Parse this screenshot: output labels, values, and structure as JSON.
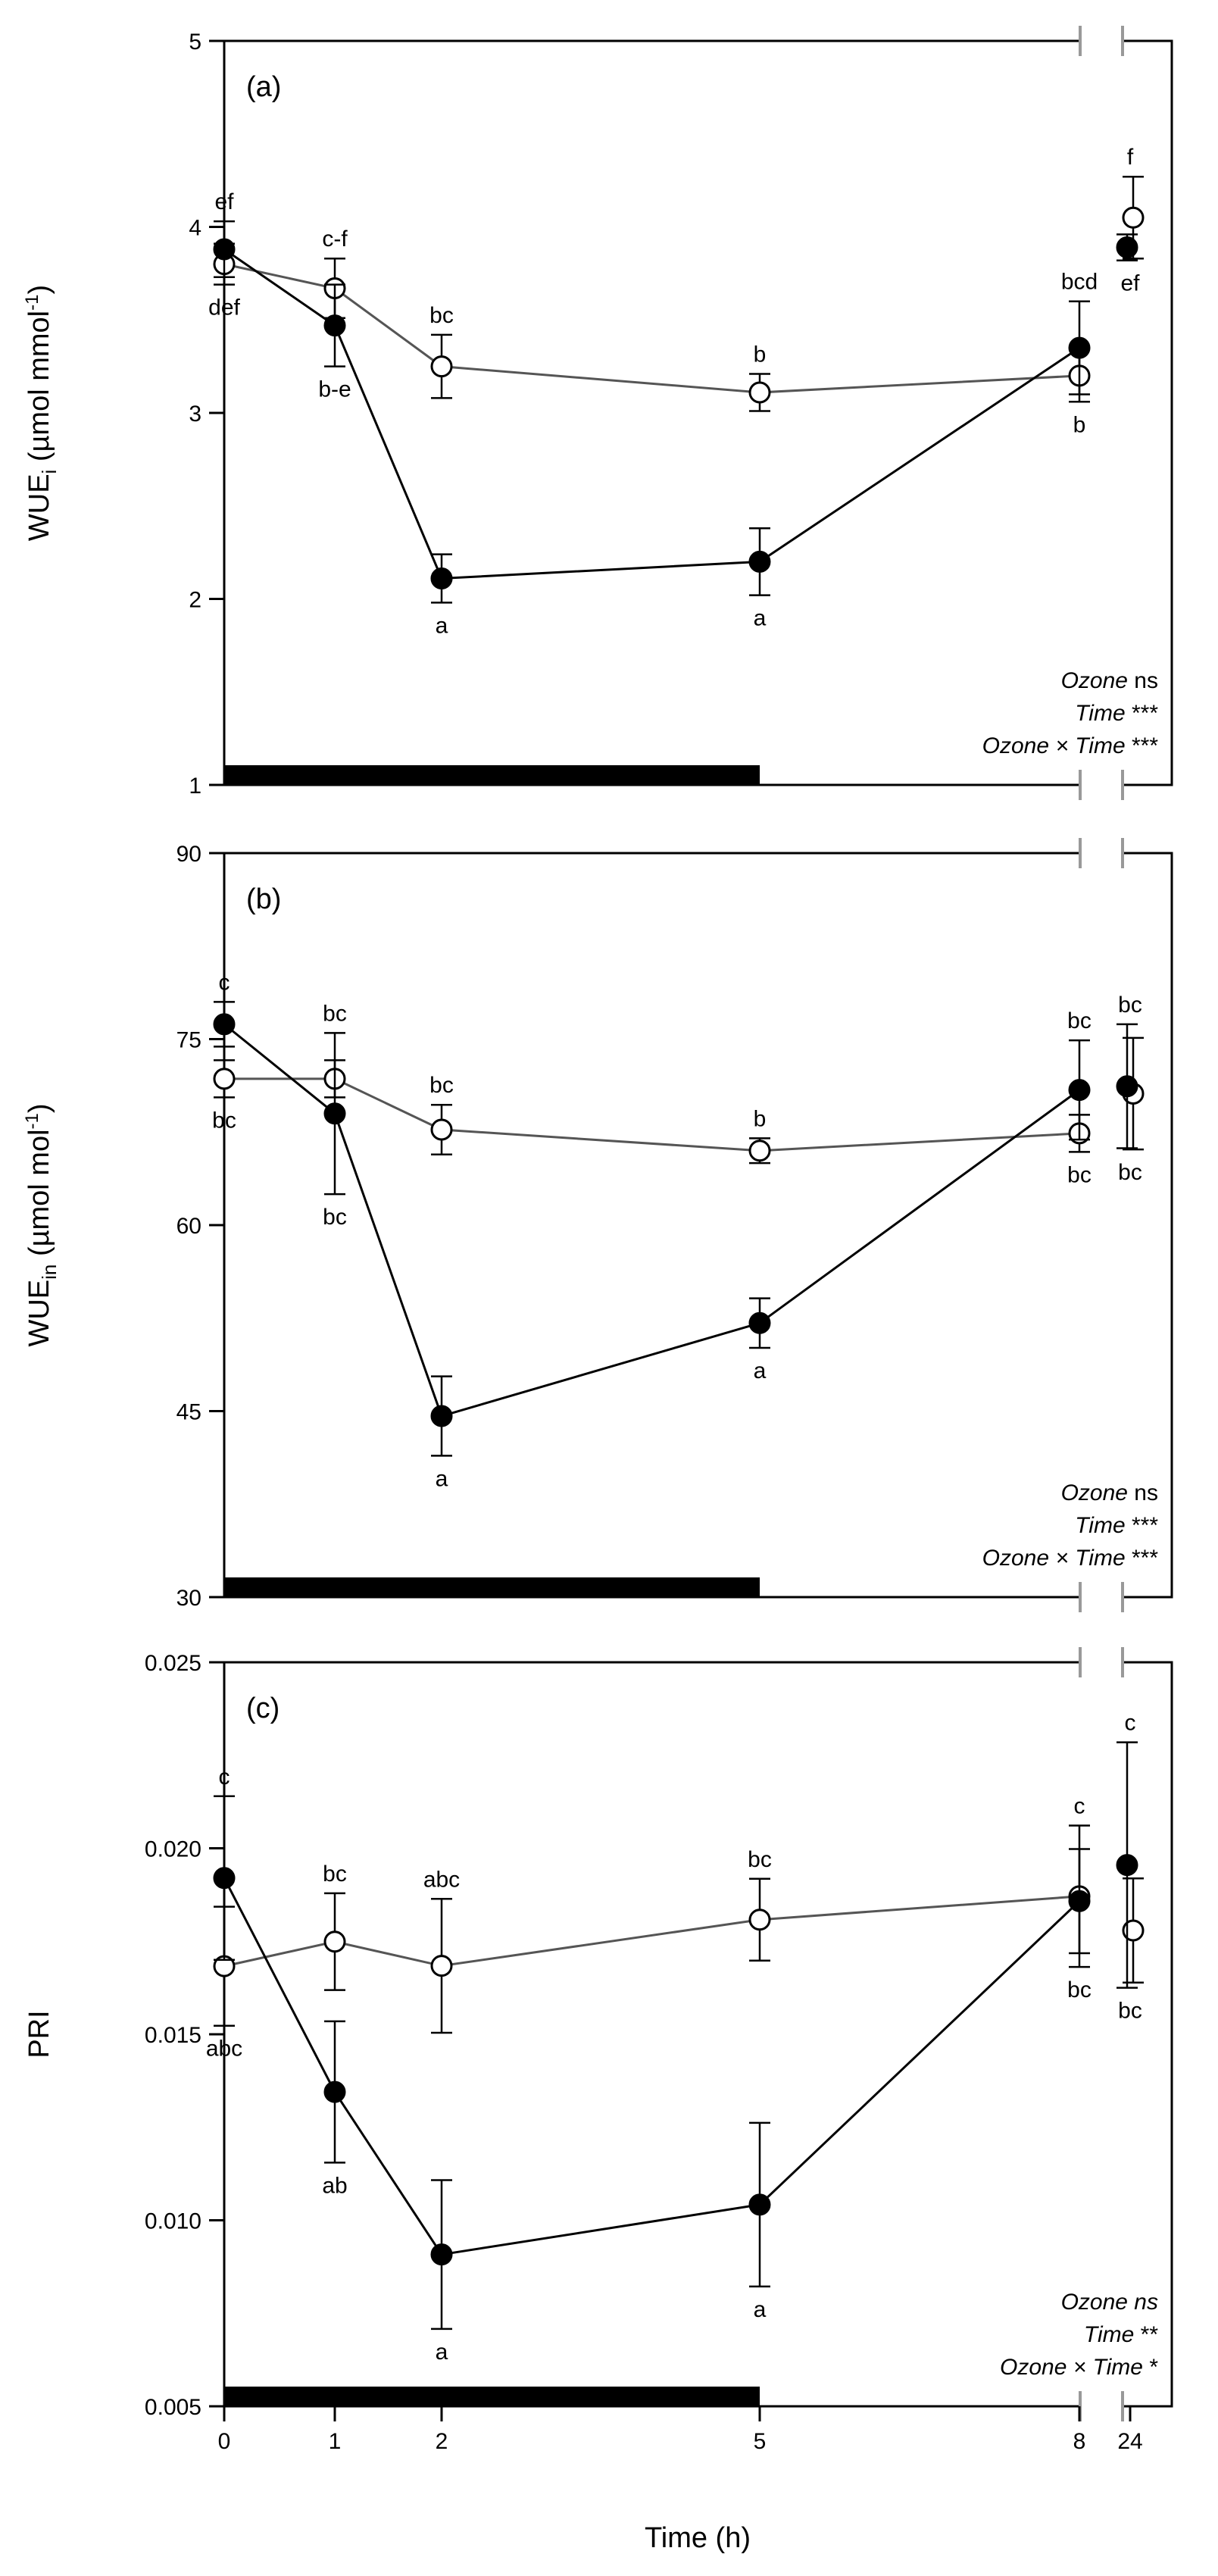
{
  "chart_data": [
    {
      "type": "line",
      "panel_label": "(a)",
      "ylabel_main": "WUE",
      "ylabel_sub": "i",
      "ylabel_unit_pre": " (µmol mmol",
      "ylabel_sup": "-1",
      "ylabel_unit_post": ")",
      "ylim": [
        1,
        5
      ],
      "yticks": [
        "1",
        "2",
        "3",
        "4",
        "5"
      ],
      "x": [
        0,
        1,
        2,
        5,
        8,
        24
      ],
      "series": [
        {
          "name": "filled",
          "values": [
            3.88,
            3.47,
            2.11,
            2.2,
            3.35,
            3.89
          ],
          "err": [
            0.15,
            0.22,
            0.13,
            0.18,
            0.25,
            0.07
          ],
          "letters": [
            "ef",
            "b-e",
            "a",
            "a",
            "bcd",
            "ef"
          ]
        },
        {
          "name": "open",
          "values": [
            3.8,
            3.67,
            3.25,
            3.11,
            3.2,
            4.05
          ],
          "err": [
            0.11,
            0.16,
            0.17,
            0.1,
            0.14,
            0.22
          ],
          "letters": [
            "def",
            "c-f",
            "bc",
            "b",
            "b",
            "f"
          ]
        }
      ],
      "stats": [
        {
          "term": "Ozone",
          "result": " ns",
          "italic_result": false
        },
        {
          "term": "Time",
          "result": " ***",
          "italic_result": false
        },
        {
          "term": "Ozone × Time",
          "result": " ***",
          "italic_result": false
        }
      ]
    },
    {
      "type": "line",
      "panel_label": "(b)",
      "ylabel_main": "WUE",
      "ylabel_sub": "in",
      "ylabel_unit_pre": " (µmol mol",
      "ylabel_sup": "-1",
      "ylabel_unit_post": ")",
      "ylim": [
        30,
        90
      ],
      "yticks": [
        "30",
        "45",
        "60",
        "75",
        "90"
      ],
      "x": [
        0,
        1,
        2,
        5,
        8,
        24
      ],
      "series": [
        {
          "name": "filled",
          "values": [
            76.2,
            69.0,
            44.6,
            52.1,
            70.9,
            71.2
          ],
          "err": [
            1.8,
            6.5,
            3.2,
            2.0,
            4.0,
            5.0
          ],
          "letters": [
            "c",
            "bc",
            "a",
            "a",
            "bc",
            "bc"
          ]
        },
        {
          "name": "open",
          "values": [
            71.8,
            71.8,
            67.7,
            66.0,
            67.4,
            70.6
          ],
          "err": [
            1.5,
            1.5,
            2.0,
            1.0,
            1.5,
            4.5
          ],
          "letters": [
            "bc",
            "bc",
            "bc",
            "b",
            "bc",
            "bc"
          ]
        }
      ],
      "stats": [
        {
          "term": "Ozone",
          "result": " ns",
          "italic_result": false
        },
        {
          "term": "Time",
          "result": " ***",
          "italic_result": false
        },
        {
          "term": "Ozone × Time",
          "result": " ***",
          "italic_result": false
        }
      ]
    },
    {
      "type": "line",
      "panel_label": "(c)",
      "ylabel_main": "PRI",
      "ylabel_sub": "",
      "ylabel_unit_pre": "",
      "ylabel_sup": "",
      "ylabel_unit_post": "",
      "ylim": [
        0.005,
        0.025
      ],
      "yticks": [
        "0.005",
        "0.010",
        "0.015",
        "0.020",
        "0.025"
      ],
      "x": [
        0,
        1,
        2,
        5,
        8,
        24
      ],
      "series": [
        {
          "name": "filled",
          "values": [
            0.0192,
            0.01345,
            0.00908,
            0.01042,
            0.01858,
            0.01955
          ],
          "err": [
            0.0022,
            0.0019,
            0.002,
            0.0022,
            0.0014,
            0.0033
          ],
          "letters": [
            "c",
            "ab",
            "a",
            "a",
            "bc",
            "c"
          ]
        },
        {
          "name": "open",
          "values": [
            0.01683,
            0.01749,
            0.01684,
            0.01808,
            0.01871,
            0.01779
          ],
          "err": [
            0.0016,
            0.0013,
            0.0018,
            0.0011,
            0.0019,
            0.0014
          ],
          "letters": [
            "abc",
            "bc",
            "abc",
            "bc",
            "c",
            "bc"
          ]
        }
      ],
      "stats": [
        {
          "term": "Ozone",
          "result": " ns",
          "italic_result": true
        },
        {
          "term": "Time",
          "result": " **",
          "italic_result": false
        },
        {
          "term": "Ozone × Time",
          "result": " *",
          "italic_result": false
        }
      ]
    }
  ],
  "x_axis": {
    "ticks": [
      "0",
      "1",
      "2",
      "5",
      "8",
      "24"
    ],
    "label": "Time (h)"
  },
  "exposure_bar": {
    "start": 0,
    "end": 5
  }
}
